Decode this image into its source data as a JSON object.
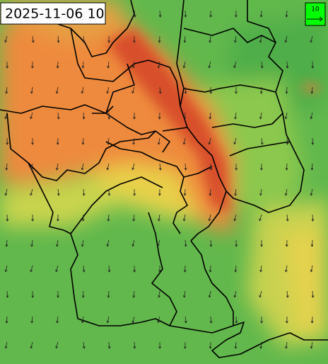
{
  "timestamp": "2025-11-06 10",
  "legend": {
    "wind_scale_label": "10"
  }
}
